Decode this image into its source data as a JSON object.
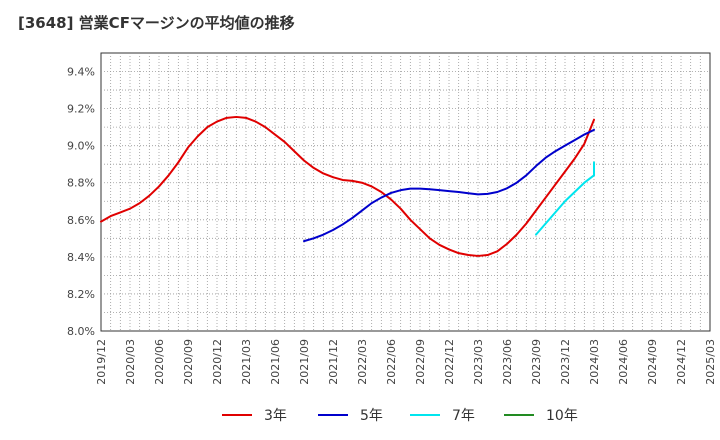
{
  "chart_data": {
    "type": "line",
    "title": "[3648]  営業CFマージンの平均値の推移",
    "xlabel": "",
    "ylabel": "",
    "ylim": [
      8.0,
      9.5
    ],
    "y_ticks": [
      "8.0%",
      "8.2%",
      "8.4%",
      "8.6%",
      "8.8%",
      "9.0%",
      "9.2%",
      "9.4%"
    ],
    "x_ticks": [
      "2019/12",
      "2020/03",
      "2020/06",
      "2020/09",
      "2020/12",
      "2021/03",
      "2021/06",
      "2021/09",
      "2021/12",
      "2022/03",
      "2022/06",
      "2022/09",
      "2022/12",
      "2023/03",
      "2023/06",
      "2023/09",
      "2023/12",
      "2024/03",
      "2024/06",
      "2024/09",
      "2024/12",
      "2025/03"
    ],
    "grid": true,
    "legend_position": "bottom",
    "series": [
      {
        "name": "3年",
        "color": "#e00000",
        "points": [
          [
            "2019/12",
            8.59
          ],
          [
            "2020/01",
            8.62
          ],
          [
            "2020/02",
            8.64
          ],
          [
            "2020/03",
            8.66
          ],
          [
            "2020/04",
            8.69
          ],
          [
            "2020/05",
            8.73
          ],
          [
            "2020/06",
            8.78
          ],
          [
            "2020/07",
            8.84
          ],
          [
            "2020/08",
            8.91
          ],
          [
            "2020/09",
            8.99
          ],
          [
            "2020/10",
            9.05
          ],
          [
            "2020/11",
            9.1
          ],
          [
            "2020/12",
            9.13
          ],
          [
            "2021/01",
            9.15
          ],
          [
            "2021/02",
            9.155
          ],
          [
            "2021/03",
            9.15
          ],
          [
            "2021/04",
            9.13
          ],
          [
            "2021/05",
            9.1
          ],
          [
            "2021/06",
            9.06
          ],
          [
            "2021/07",
            9.02
          ],
          [
            "2021/08",
            8.97
          ],
          [
            "2021/09",
            8.92
          ],
          [
            "2021/10",
            8.88
          ],
          [
            "2021/11",
            8.85
          ],
          [
            "2021/12",
            8.83
          ],
          [
            "2022/01",
            8.815
          ],
          [
            "2022/02",
            8.81
          ],
          [
            "2022/03",
            8.8
          ],
          [
            "2022/04",
            8.78
          ],
          [
            "2022/05",
            8.75
          ],
          [
            "2022/06",
            8.71
          ],
          [
            "2022/07",
            8.66
          ],
          [
            "2022/08",
            8.6
          ],
          [
            "2022/09",
            8.55
          ],
          [
            "2022/10",
            8.5
          ],
          [
            "2022/11",
            8.465
          ],
          [
            "2022/12",
            8.44
          ],
          [
            "2023/01",
            8.42
          ],
          [
            "2023/02",
            8.41
          ],
          [
            "2023/03",
            8.405
          ],
          [
            "2023/04",
            8.41
          ],
          [
            "2023/05",
            8.43
          ],
          [
            "2023/06",
            8.47
          ],
          [
            "2023/07",
            8.52
          ],
          [
            "2023/08",
            8.58
          ],
          [
            "2023/09",
            8.65
          ],
          [
            "2023/10",
            8.72
          ],
          [
            "2023/11",
            8.79
          ],
          [
            "2023/12",
            8.86
          ],
          [
            "2024/01",
            8.93
          ],
          [
            "2024/02",
            9.01
          ],
          [
            "2024/03",
            9.14
          ]
        ]
      },
      {
        "name": "5年",
        "color": "#0000cc",
        "points": [
          [
            "2021/09",
            8.485
          ],
          [
            "2021/10",
            8.5
          ],
          [
            "2021/11",
            8.52
          ],
          [
            "2021/12",
            8.545
          ],
          [
            "2022/01",
            8.575
          ],
          [
            "2022/02",
            8.61
          ],
          [
            "2022/03",
            8.65
          ],
          [
            "2022/04",
            8.69
          ],
          [
            "2022/05",
            8.72
          ],
          [
            "2022/06",
            8.745
          ],
          [
            "2022/07",
            8.76
          ],
          [
            "2022/08",
            8.768
          ],
          [
            "2022/09",
            8.768
          ],
          [
            "2022/10",
            8.765
          ],
          [
            "2022/11",
            8.76
          ],
          [
            "2022/12",
            8.755
          ],
          [
            "2023/01",
            8.75
          ],
          [
            "2023/02",
            8.743
          ],
          [
            "2023/03",
            8.737
          ],
          [
            "2023/04",
            8.74
          ],
          [
            "2023/05",
            8.75
          ],
          [
            "2023/06",
            8.77
          ],
          [
            "2023/07",
            8.8
          ],
          [
            "2023/08",
            8.84
          ],
          [
            "2023/09",
            8.89
          ],
          [
            "2023/10",
            8.935
          ],
          [
            "2023/11",
            8.97
          ],
          [
            "2023/12",
            9.0
          ],
          [
            "2024/01",
            9.03
          ],
          [
            "2024/02",
            9.06
          ],
          [
            "2024/03",
            9.085
          ]
        ]
      },
      {
        "name": "7年",
        "color": "#00e5ee",
        "points": [
          [
            "2023/09",
            8.52
          ],
          [
            "2023/10",
            8.58
          ],
          [
            "2023/11",
            8.64
          ],
          [
            "2023/12",
            8.7
          ],
          [
            "2024/01",
            8.75
          ],
          [
            "2024/02",
            8.8
          ],
          [
            "2024/03",
            8.84
          ],
          [
            "2024/03",
            8.91
          ]
        ]
      },
      {
        "name": "10年",
        "color": "#228b22",
        "points": []
      }
    ]
  }
}
